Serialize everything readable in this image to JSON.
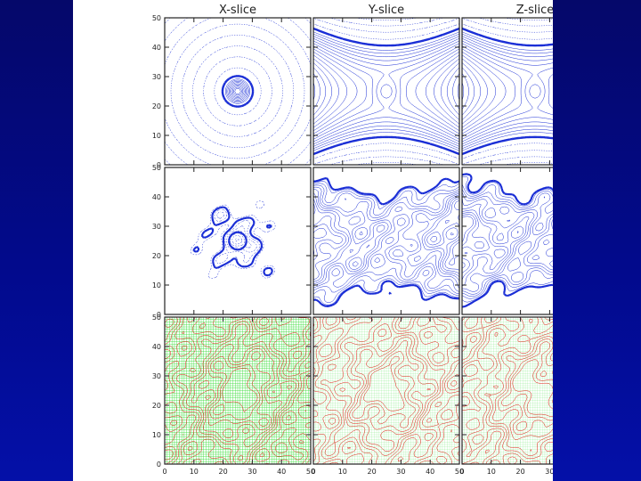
{
  "slide": {
    "background_color": "#05087a"
  },
  "figure": {
    "column_titles": [
      "X-slice",
      "Y-slice",
      "Z-slice"
    ],
    "row_colors": {
      "row1": "#1a2ed6",
      "row2": "#1a2ed6",
      "row3_contour": "#e01a10",
      "row3_overlay": "#33dd33"
    }
  },
  "chart_data": {
    "type": "contour",
    "layout": "3x3 grid of contour panels",
    "xlim": [
      0,
      50
    ],
    "ylim": [
      0,
      50
    ],
    "x_ticks": [
      0,
      10,
      20,
      30,
      40,
      50
    ],
    "y_ticks": [
      0,
      10,
      20,
      30,
      40,
      50
    ],
    "panels": [
      {
        "row": 1,
        "column": "X-slice",
        "pattern": "concentric rings centred at (25,25), bold ring radius ~5"
      },
      {
        "row": 1,
        "column": "Y-slice",
        "pattern": "hourglass lobes, two bold arches, centre (25,25)"
      },
      {
        "row": 1,
        "column": "Z-slice",
        "pattern": "hourglass lobes, two bold arches, centre (25,25)"
      },
      {
        "row": 2,
        "column": "X-slice",
        "pattern": "noisy contours, small bold ring near (25,25)"
      },
      {
        "row": 2,
        "column": "Y-slice",
        "pattern": "noisy hourglass, bold wavy boundaries"
      },
      {
        "row": 2,
        "column": "Z-slice",
        "pattern": "noisy hourglass, bold wavy boundaries"
      },
      {
        "row": 3,
        "column": "X-slice",
        "pattern": "green overlay grid with red contours"
      },
      {
        "row": 3,
        "column": "Y-slice",
        "pattern": "red blob contours with green overlay"
      },
      {
        "row": 3,
        "column": "Z-slice",
        "pattern": "red blob contours with green overlay"
      }
    ]
  }
}
